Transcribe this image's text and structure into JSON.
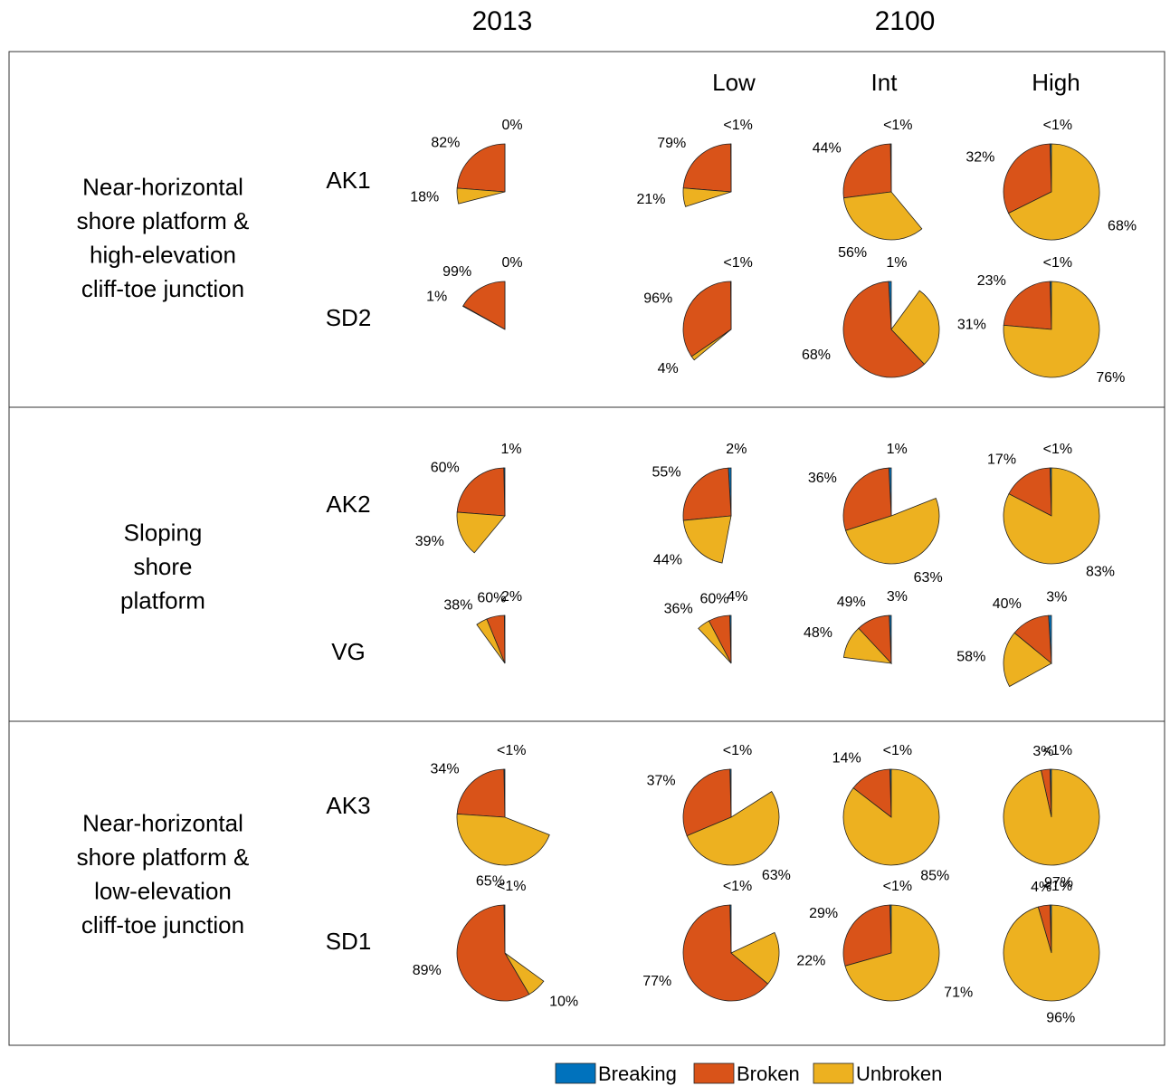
{
  "chart_data": {
    "type": "pie",
    "headers": [
      "2013",
      "2100"
    ],
    "scenarios": [
      "Low",
      "Int",
      "High"
    ],
    "series": [
      {
        "name": "Breaking",
        "color": "#0072bd"
      },
      {
        "name": "Broken",
        "color": "#d95319"
      },
      {
        "name": "Unbroken",
        "color": "#edb120"
      }
    ],
    "groups": [
      {
        "label": [
          "Near-horizontal",
          "shore platform &",
          "high-elevation",
          "cliff-toe junction"
        ],
        "rows": [
          {
            "label": "AK1",
            "pies": [
              {
                "values": [
                  0,
                  82,
                  18
                ],
                "value_labels": [
                  "0%",
                  "82%",
                  "18%"
                ],
                "extent": 0.29
              },
              {
                "values": [
                  0.5,
                  79,
                  21
                ],
                "value_labels": [
                  "<1%",
                  "79%",
                  "21%"
                ],
                "extent": 0.3
              },
              {
                "values": [
                  0.5,
                  44,
                  56
                ],
                "value_labels": [
                  "<1%",
                  "44%",
                  "56%"
                ],
                "extent": 0.61
              },
              {
                "values": [
                  0.5,
                  32,
                  68
                ],
                "value_labels": [
                  "<1%",
                  "32%",
                  "68%"
                ],
                "extent": 1
              }
            ]
          },
          {
            "label": "SD2",
            "pies": [
              {
                "values": [
                  0,
                  99,
                  1
                ],
                "value_labels": [
                  "0%",
                  "99%",
                  "1%"
                ],
                "extent": 0.17
              },
              {
                "values": [
                  0.5,
                  96,
                  4
                ],
                "value_labels": [
                  "<1%",
                  "96%",
                  "4%"
                ],
                "extent": 0.36
              },
              {
                "values": [
                  1,
                  68,
                  31
                ],
                "value_labels": [
                  "1%",
                  "68%",
                  "31%"
                ],
                "extent": 0.9
              },
              {
                "values": [
                  0.5,
                  23,
                  76
                ],
                "value_labels": [
                  "<1%",
                  "23%",
                  "76%"
                ],
                "extent": 1
              }
            ]
          }
        ]
      },
      {
        "label": [
          "Sloping",
          "shore",
          "platform"
        ],
        "rows": [
          {
            "label": "AK2",
            "pies": [
              {
                "values": [
                  1,
                  60,
                  39
                ],
                "value_labels": [
                  "1%",
                  "60%",
                  "39%"
                ],
                "extent": 0.39
              },
              {
                "values": [
                  2,
                  55,
                  44
                ],
                "value_labels": [
                  "2%",
                  "55%",
                  "44%"
                ],
                "extent": 0.47
              },
              {
                "values": [
                  1,
                  36,
                  63
                ],
                "value_labels": [
                  "1%",
                  "36%",
                  "63%"
                ],
                "extent": 0.81
              },
              {
                "values": [
                  0.5,
                  17,
                  83
                ],
                "value_labels": [
                  "<1%",
                  "17%",
                  "83%"
                ],
                "extent": 1
              }
            ]
          },
          {
            "label": "VG",
            "pies": [
              {
                "values": [
                  2,
                  60,
                  38
                ],
                "value_labels": [
                  "2%",
                  "60%",
                  "38%"
                ],
                "extent": 0.1
              },
              {
                "values": [
                  4,
                  60,
                  36
                ],
                "value_labels": [
                  "4%",
                  "60%",
                  "36%"
                ],
                "extent": 0.12
              },
              {
                "values": [
                  3,
                  49,
                  48
                ],
                "value_labels": [
                  "3%",
                  "49%",
                  "48%"
                ],
                "extent": 0.23
              },
              {
                "values": [
                  3,
                  40,
                  58
                ],
                "value_labels": [
                  "3%",
                  "40%",
                  "58%"
                ],
                "extent": 0.33
              }
            ]
          }
        ]
      },
      {
        "label": [
          "Near-horizontal",
          "shore platform &",
          "low-elevation",
          "cliff-toe junction"
        ],
        "rows": [
          {
            "label": "AK3",
            "pies": [
              {
                "values": [
                  0.5,
                  34,
                  65
                ],
                "value_labels": [
                  "<1%",
                  "34%",
                  "65%"
                ],
                "extent": 0.69
              },
              {
                "values": [
                  0.5,
                  37,
                  63
                ],
                "value_labels": [
                  "<1%",
                  "37%",
                  "63%"
                ],
                "extent": 0.84
              },
              {
                "values": [
                  0.5,
                  14,
                  85
                ],
                "value_labels": [
                  "<1%",
                  "14%",
                  "85%"
                ],
                "extent": 1
              },
              {
                "values": [
                  0.5,
                  3,
                  97
                ],
                "value_labels": [
                  "<1%",
                  "3%",
                  "97%"
                ],
                "extent": 1
              }
            ]
          },
          {
            "label": "SD1",
            "pies": [
              {
                "values": [
                  0.5,
                  89,
                  10
                ],
                "value_labels": [
                  "<1%",
                  "89%",
                  "10%"
                ],
                "extent": 0.65
              },
              {
                "values": [
                  0.5,
                  77,
                  22
                ],
                "value_labels": [
                  "<1%",
                  "77%",
                  "22%"
                ],
                "extent": 0.82
              },
              {
                "values": [
                  0.5,
                  29,
                  71
                ],
                "value_labels": [
                  "<1%",
                  "29%",
                  "71%"
                ],
                "extent": 1
              },
              {
                "values": [
                  0.5,
                  4,
                  96
                ],
                "value_labels": [
                  "<1%",
                  "4%",
                  "96%"
                ],
                "extent": 1
              }
            ]
          }
        ]
      }
    ]
  }
}
